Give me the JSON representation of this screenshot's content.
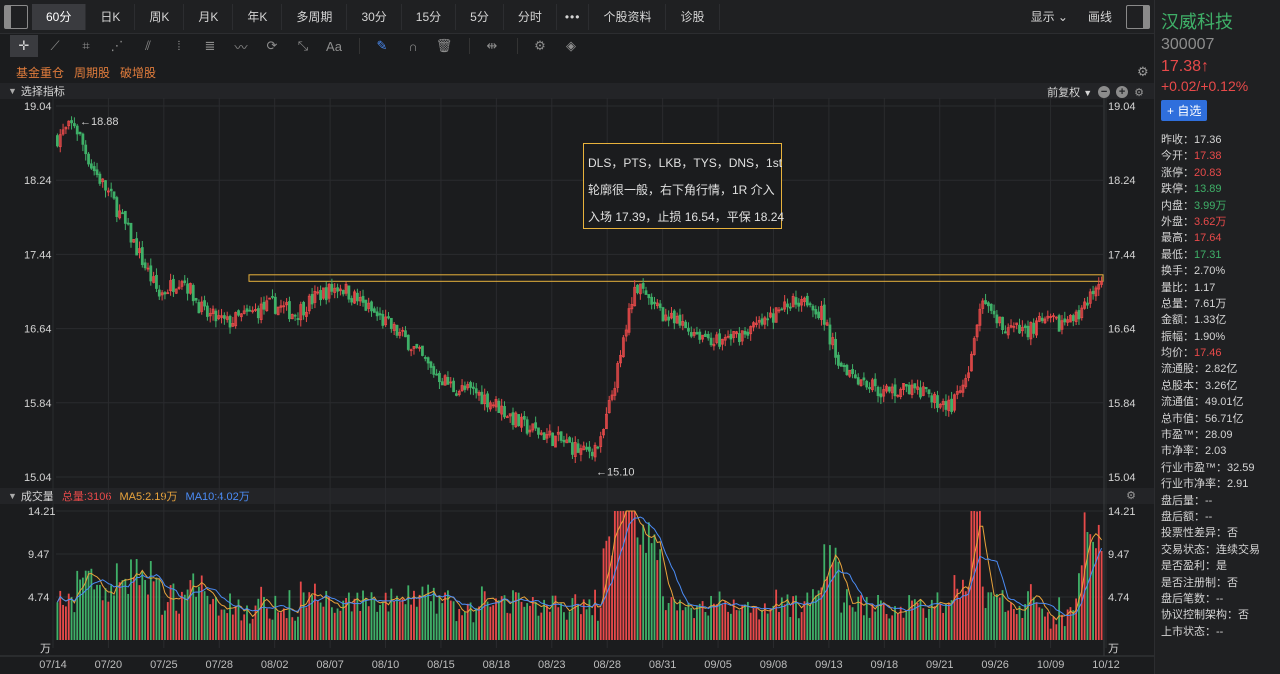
{
  "topbar": {
    "periods": [
      "60分",
      "日K",
      "周K",
      "月K",
      "年K",
      "多周期",
      "30分",
      "15分",
      "5分",
      "分时",
      "•••",
      "个股资料",
      "诊股"
    ],
    "active_period": "60分",
    "show_label": "显示",
    "draw_label": "画线"
  },
  "toolbar": {
    "tools": [
      "crosshair-icon",
      "line-segment-icon",
      "crop-icon",
      "fan-icon",
      "channel-icon",
      "grid-lines-icon",
      "fibonacci-icon",
      "wave-icon",
      "cycle-icon",
      "measure-icon",
      "text-icon",
      "pen-icon",
      "magnet-icon",
      "trash-icon",
      "hide-drawings-icon",
      "settings-icon",
      "layers-icon"
    ],
    "text_tool_label": "Aa"
  },
  "tags": [
    "基金重仓",
    "周期股",
    "破增股"
  ],
  "main_chart": {
    "header_label": "选择指标",
    "adjust_label": "前复权",
    "y_ticks": [
      "19.04",
      "18.24",
      "17.44",
      "16.64",
      "15.84",
      "15.04"
    ],
    "high_marker": "←18.88",
    "low_marker": "←15.10",
    "annotation": {
      "lines": [
        "DLS，PTS，LKB，TYS，DNS，1st",
        "轮廓很一般，右下角行情，1R 介入",
        "入场 17.39，止损 16.54，平保 18.24"
      ]
    },
    "resistance_zone": [
      17.15,
      17.22
    ]
  },
  "volume_chart": {
    "header_label": "成交量",
    "total_label": "总量:3106",
    "ma5_label": "MA5:2.19万",
    "ma10_label": "MA10:4.02万",
    "y_ticks": [
      "14.21",
      "9.47",
      "4.74"
    ],
    "unit": "万"
  },
  "x_axis": [
    "07/14",
    "07/20",
    "07/25",
    "07/28",
    "08/02",
    "08/07",
    "08/10",
    "08/15",
    "08/18",
    "08/23",
    "08/28",
    "08/31",
    "09/05",
    "09/08",
    "09/13",
    "09/18",
    "09/21",
    "09/26",
    "10/09",
    "10/12"
  ],
  "colors": {
    "up": "#e84a4a",
    "down": "#3fb068",
    "ma5": "#e8a33c",
    "ma10": "#4b8cf5",
    "annotation": "#e8b23c"
  },
  "chart_data": {
    "type": "candlestick",
    "y_range": [
      15.04,
      19.04
    ],
    "volume_range": [
      0,
      14.21
    ],
    "anchors": [
      [
        0,
        18.7
      ],
      [
        6,
        18.85
      ],
      [
        12,
        18.4
      ],
      [
        20,
        18.0
      ],
      [
        28,
        17.5
      ],
      [
        36,
        17.0
      ],
      [
        44,
        17.2
      ],
      [
        52,
        16.8
      ],
      [
        60,
        16.7
      ],
      [
        68,
        16.8
      ],
      [
        76,
        16.9
      ],
      [
        84,
        16.8
      ],
      [
        92,
        17.0
      ],
      [
        100,
        17.1
      ],
      [
        108,
        16.9
      ],
      [
        116,
        16.7
      ],
      [
        124,
        16.5
      ],
      [
        132,
        16.2
      ],
      [
        140,
        16.0
      ],
      [
        148,
        15.95
      ],
      [
        156,
        15.8
      ],
      [
        164,
        15.6
      ],
      [
        172,
        15.5
      ],
      [
        180,
        15.4
      ],
      [
        186,
        15.3
      ],
      [
        192,
        15.4
      ],
      [
        198,
        16.2
      ],
      [
        204,
        17.1
      ],
      [
        210,
        16.9
      ],
      [
        218,
        16.7
      ],
      [
        226,
        16.6
      ],
      [
        234,
        16.5
      ],
      [
        242,
        16.6
      ],
      [
        250,
        16.7
      ],
      [
        258,
        16.9
      ],
      [
        264,
        17.0
      ],
      [
        270,
        16.8
      ],
      [
        276,
        16.3
      ],
      [
        284,
        16.1
      ],
      [
        292,
        15.95
      ],
      [
        300,
        16.0
      ],
      [
        308,
        15.9
      ],
      [
        316,
        15.8
      ],
      [
        322,
        16.1
      ],
      [
        326,
        16.9
      ],
      [
        332,
        16.7
      ],
      [
        340,
        16.6
      ],
      [
        348,
        16.7
      ],
      [
        356,
        16.7
      ],
      [
        362,
        16.8
      ],
      [
        368,
        17.1
      ]
    ],
    "high": 18.88,
    "low": 15.1,
    "last_price": 17.38
  },
  "quote": {
    "name": "汉威科技",
    "code": "300007",
    "price": "17.38↑",
    "change": "+0.02/+0.12%",
    "watch_label": "+ 自选",
    "stats": [
      {
        "label": "昨收：",
        "value": "17.36",
        "color": ""
      },
      {
        "label": "今开：",
        "value": "17.38",
        "color": "red"
      },
      {
        "label": "涨停：",
        "value": "20.83",
        "color": "red"
      },
      {
        "label": "跌停：",
        "value": "13.89",
        "color": "green"
      },
      {
        "label": "内盘：",
        "value": "3.99万",
        "color": "green"
      },
      {
        "label": "外盘：",
        "value": "3.62万",
        "color": "red"
      },
      {
        "label": "最高：",
        "value": "17.64",
        "color": "red"
      },
      {
        "label": "最低：",
        "value": "17.31",
        "color": "green"
      },
      {
        "label": "换手：",
        "value": "2.70%",
        "color": ""
      },
      {
        "label": "量比：",
        "value": "1.17",
        "color": ""
      },
      {
        "label": "总量：",
        "value": "7.61万",
        "color": ""
      },
      {
        "label": "金额：",
        "value": "1.33亿",
        "color": ""
      },
      {
        "label": "振幅：",
        "value": "1.90%",
        "color": ""
      },
      {
        "label": "均价：",
        "value": "17.46",
        "color": "red"
      },
      {
        "label": "流通股：",
        "value": "2.82亿",
        "color": ""
      },
      {
        "label": "总股本：",
        "value": "3.26亿",
        "color": ""
      },
      {
        "label": "流通值：",
        "value": "49.01亿",
        "color": ""
      },
      {
        "label": "总市值：",
        "value": "56.71亿",
        "color": ""
      },
      {
        "label": "市盈™：",
        "value": "28.09",
        "color": ""
      },
      {
        "label": "市净率：",
        "value": "2.03",
        "color": ""
      },
      {
        "label": "行业市盈™：",
        "value": "32.59",
        "color": ""
      },
      {
        "label": "行业市净率：",
        "value": "2.91",
        "color": ""
      },
      {
        "label": "盘后量：",
        "value": "--",
        "color": ""
      },
      {
        "label": "盘后额：",
        "value": "--",
        "color": ""
      },
      {
        "label": "投票性差异：",
        "value": "否",
        "color": ""
      },
      {
        "label": "交易状态：",
        "value": "连续交易",
        "color": ""
      },
      {
        "label": "是否盈利：",
        "value": "是",
        "color": ""
      },
      {
        "label": "是否注册制：",
        "value": "否",
        "color": ""
      },
      {
        "label": "盘后笔数：",
        "value": "--",
        "color": ""
      },
      {
        "label": "协议控制架构：",
        "value": "否",
        "color": ""
      },
      {
        "label": "上市状态：",
        "value": "--",
        "color": ""
      }
    ]
  }
}
